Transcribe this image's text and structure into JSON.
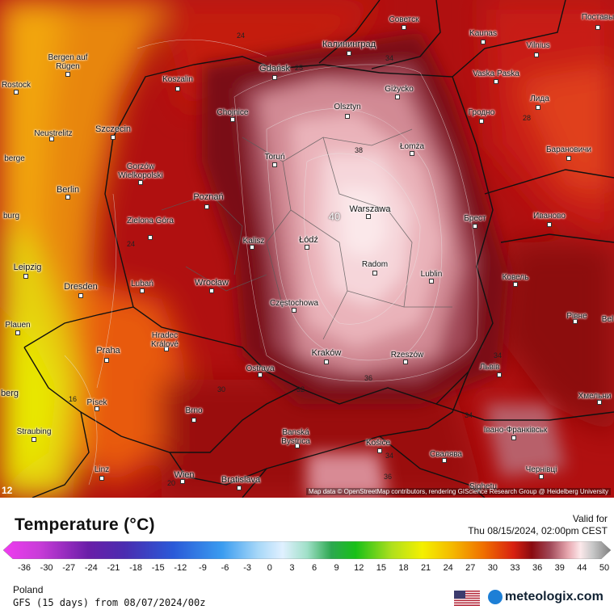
{
  "header": {
    "title": "Temperature (°C)",
    "valid_label": "Valid for",
    "valid_time": "Thu 08/15/2024, 02:00pm CEST"
  },
  "footer": {
    "region": "Poland",
    "model": "GFS (15 days) from 08/07/2024/00z",
    "brand": "meteologix.com"
  },
  "map": {
    "attribution": "Map data © OpenStreetMap contributors, rendering GIScience Research Group @ Heidelberg University",
    "frame_badge": "12",
    "cities": [
      {
        "name": "Советск"
      },
      {
        "name": "Поставы"
      },
      {
        "name": "Kaunas"
      },
      {
        "name": "Vilnius"
      },
      {
        "name": "Калининград"
      },
      {
        "name": "Bergen auf Rügen"
      },
      {
        "name": "Gdańsk"
      },
      {
        "name": "Vaska Paska"
      },
      {
        "name": "Koszalin"
      },
      {
        "name": "Rostock"
      },
      {
        "name": "Giżycko"
      },
      {
        "name": "Лида"
      },
      {
        "name": "Olsztyn"
      },
      {
        "name": "Chojnice"
      },
      {
        "name": "Гродно"
      },
      {
        "name": "Neustrelitz"
      },
      {
        "name": "Szczecin"
      },
      {
        "name": "Łomża"
      },
      {
        "name": "Барановичи"
      },
      {
        "name": "berge"
      },
      {
        "name": "Toruń"
      },
      {
        "name": "Gorzów Wielkopolski"
      },
      {
        "name": "Berlin"
      },
      {
        "name": "Poznań"
      },
      {
        "name": "Warszawa"
      },
      {
        "name": "Брест"
      },
      {
        "name": "Иваново"
      },
      {
        "name": "burg"
      },
      {
        "name": "Zielona Góra"
      },
      {
        "name": "Łódź"
      },
      {
        "name": "Kalisz"
      },
      {
        "name": "Radom"
      },
      {
        "name": "Leipzig"
      },
      {
        "name": "Lublin"
      },
      {
        "name": "Ковель"
      },
      {
        "name": "Dresden"
      },
      {
        "name": "Lubań"
      },
      {
        "name": "Wrocław"
      },
      {
        "name": "Częstochowa"
      },
      {
        "name": "Рівне"
      },
      {
        "name": "Plauen"
      },
      {
        "name": "Hradec Králové"
      },
      {
        "name": "Praha"
      },
      {
        "name": "Kraków"
      },
      {
        "name": "Rzeszów"
      },
      {
        "name": "Львів"
      },
      {
        "name": "Ostrava"
      },
      {
        "name": "berg"
      },
      {
        "name": "Хмельни"
      },
      {
        "name": "Písek"
      },
      {
        "name": "Brno"
      },
      {
        "name": "Banská Bystrica"
      },
      {
        "name": "Košice"
      },
      {
        "name": "Івано-Франківськ"
      },
      {
        "name": "Straubing"
      },
      {
        "name": "Свалява"
      },
      {
        "name": "Linz"
      },
      {
        "name": "Wien"
      },
      {
        "name": "Bratislava"
      },
      {
        "name": "Чернівці"
      },
      {
        "name": "Sighetu"
      },
      {
        "name": "Bel"
      }
    ],
    "isolines": [
      "24",
      "25",
      "34",
      "28",
      "38",
      "40",
      "24",
      "30",
      "16",
      "20",
      "36",
      "34",
      "34",
      "32",
      "34",
      "36"
    ]
  },
  "legend": {
    "ticks": [
      "-36",
      "-30",
      "-27",
      "-24",
      "-21",
      "-18",
      "-15",
      "-12",
      "-9",
      "-6",
      "-3",
      "0",
      "3",
      "6",
      "9",
      "12",
      "15",
      "18",
      "21",
      "24",
      "27",
      "30",
      "33",
      "36",
      "39",
      "44",
      "50"
    ]
  }
}
